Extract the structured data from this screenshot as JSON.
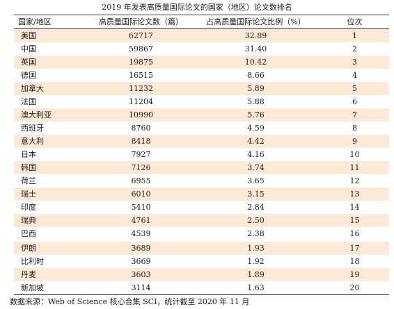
{
  "title": "2019 年发表高质量国际论文的国家（地区）论文数排名",
  "table": {
    "headers": [
      "国家/地区",
      "高质量国际论文数（篇）",
      "占高质量国际论文比例（%）",
      "位次"
    ],
    "rows": [
      {
        "country": "美国",
        "papers": "62717",
        "share": "32.89",
        "rank": "1"
      },
      {
        "country": "中国",
        "papers": "59867",
        "share": "31.40",
        "rank": "2"
      },
      {
        "country": "英国",
        "papers": "19875",
        "share": "10.42",
        "rank": "3"
      },
      {
        "country": "德国",
        "papers": "16515",
        "share": "8.66",
        "rank": "4"
      },
      {
        "country": "加拿大",
        "papers": "11232",
        "share": "5.89",
        "rank": "5"
      },
      {
        "country": "法国",
        "papers": "11204",
        "share": "5.88",
        "rank": "6"
      },
      {
        "country": "澳大利亚",
        "papers": "10990",
        "share": "5.76",
        "rank": "7"
      },
      {
        "country": "西班牙",
        "papers": "8760",
        "share": "4.59",
        "rank": "8"
      },
      {
        "country": "意大利",
        "papers": "8418",
        "share": "4.42",
        "rank": "9"
      },
      {
        "country": "日本",
        "papers": "7927",
        "share": "4.16",
        "rank": "10"
      },
      {
        "country": "韩国",
        "papers": "7126",
        "share": "3.74",
        "rank": "11"
      },
      {
        "country": "荷兰",
        "papers": "6955",
        "share": "3.65",
        "rank": "12"
      },
      {
        "country": "瑞士",
        "papers": "6010",
        "share": "3.15",
        "rank": "13"
      },
      {
        "country": "印度",
        "papers": "5410",
        "share": "2.84",
        "rank": "14"
      },
      {
        "country": "瑞典",
        "papers": "4761",
        "share": "2.50",
        "rank": "15"
      },
      {
        "country": "巴西",
        "papers": "4539",
        "share": "2.38",
        "rank": "16"
      },
      {
        "country": "伊朗",
        "papers": "3689",
        "share": "1.93",
        "rank": "17"
      },
      {
        "country": "比利时",
        "papers": "3669",
        "share": "1.92",
        "rank": "18"
      },
      {
        "country": "丹麦",
        "papers": "3603",
        "share": "1.89",
        "rank": "19"
      },
      {
        "country": "新加坡",
        "papers": "3114",
        "share": "1.63",
        "rank": "20"
      }
    ]
  },
  "source": "数据来源：Web of Science 核心合集 SCI，统计截至 2020 年 11 月",
  "colors": {
    "stripe": "#fde9d8",
    "rule": "#333333"
  }
}
